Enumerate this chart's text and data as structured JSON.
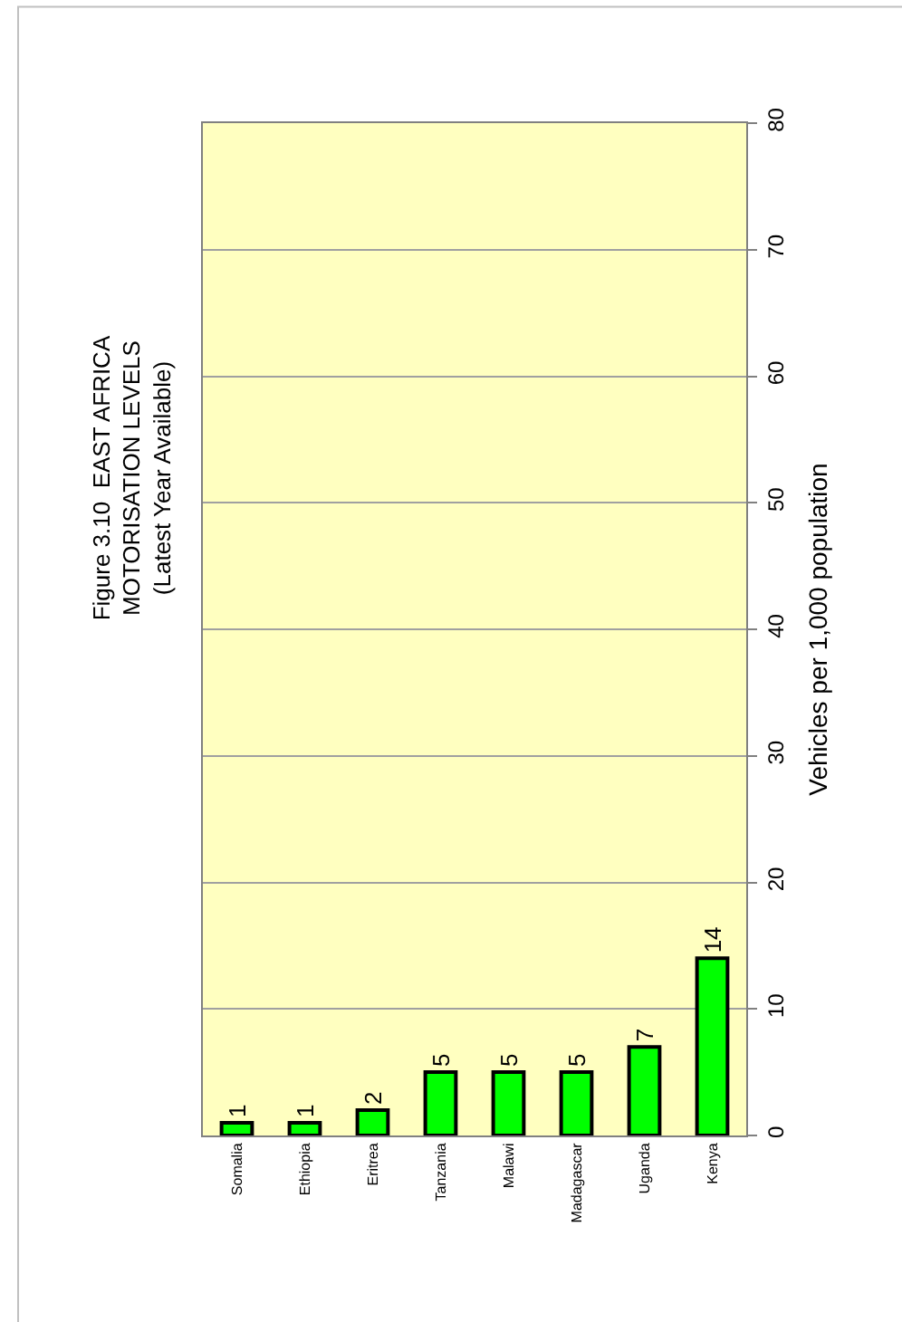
{
  "chart_data": {
    "type": "bar",
    "title": "Figure 3.10  EAST AFRICA\nMOTORISATION LEVELS\n(Latest Year Available)",
    "ylabel": "Vehicles per 1,000 population",
    "categories": [
      "Somalia",
      "Ethiopia",
      "Eritrea",
      "Tanzania",
      "Malawi",
      "Madagascar",
      "Uganda",
      "Kenya"
    ],
    "values": [
      1,
      1,
      2,
      5,
      5,
      5,
      7,
      14
    ],
    "color": "#00ff00",
    "ylim": [
      0,
      80
    ],
    "yticks": [
      0,
      10,
      20,
      30,
      40,
      50,
      60,
      70,
      80
    ],
    "grid": "y",
    "data_labels": true
  }
}
